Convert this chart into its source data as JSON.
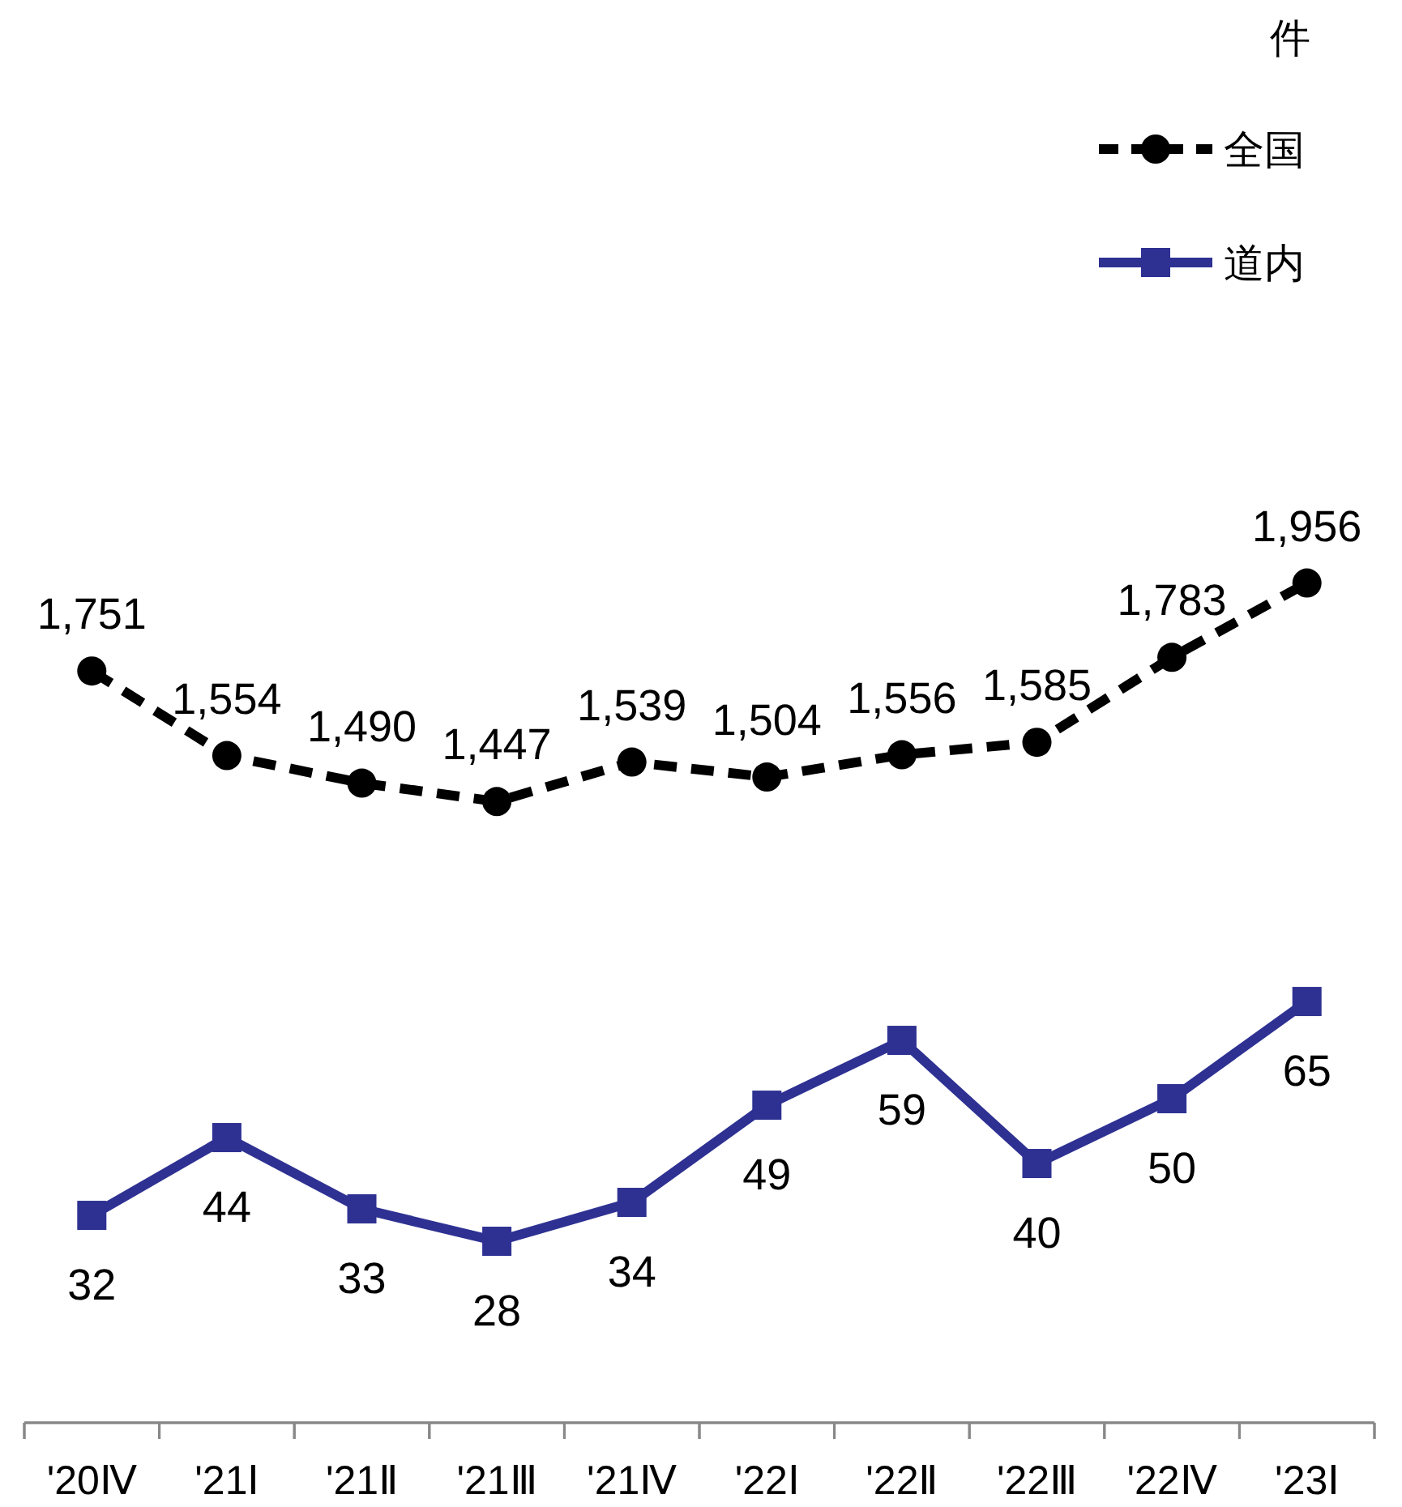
{
  "chart_data": [
    {
      "type": "line",
      "annotations": [
        "件"
      ],
      "categories": [
        null,
        null,
        null,
        null,
        null,
        null,
        null,
        null,
        null,
        null
      ],
      "series": [
        {
          "name": "全国",
          "color": "#000000",
          "marker": "circle",
          "line_style": "dashed",
          "values": [
            1751,
            1554,
            1490,
            1447,
            1539,
            1504,
            1556,
            1585,
            1783,
            1956
          ],
          "value_labels": [
            "1,751",
            "1,554",
            "1,490",
            "1,447",
            "1,539",
            "1,504",
            "1,556",
            "1,585",
            "1,783",
            "1,956"
          ]
        }
      ],
      "legend": "top right"
    },
    {
      "type": "line",
      "categories": [
        "'20Ⅳ",
        "'21Ⅰ",
        "'21Ⅱ",
        "'21Ⅲ",
        "'21Ⅳ",
        "'22Ⅰ",
        "'22Ⅱ",
        "'22Ⅲ",
        "'22Ⅳ",
        "'23Ⅰ"
      ],
      "series": [
        {
          "name": "道内",
          "color": "#2e3192",
          "marker": "square",
          "line_style": "solid",
          "values": [
            32,
            44,
            33,
            28,
            34,
            49,
            59,
            40,
            50,
            65
          ]
        }
      ],
      "data_labels": true,
      "legend": "top right"
    }
  ]
}
